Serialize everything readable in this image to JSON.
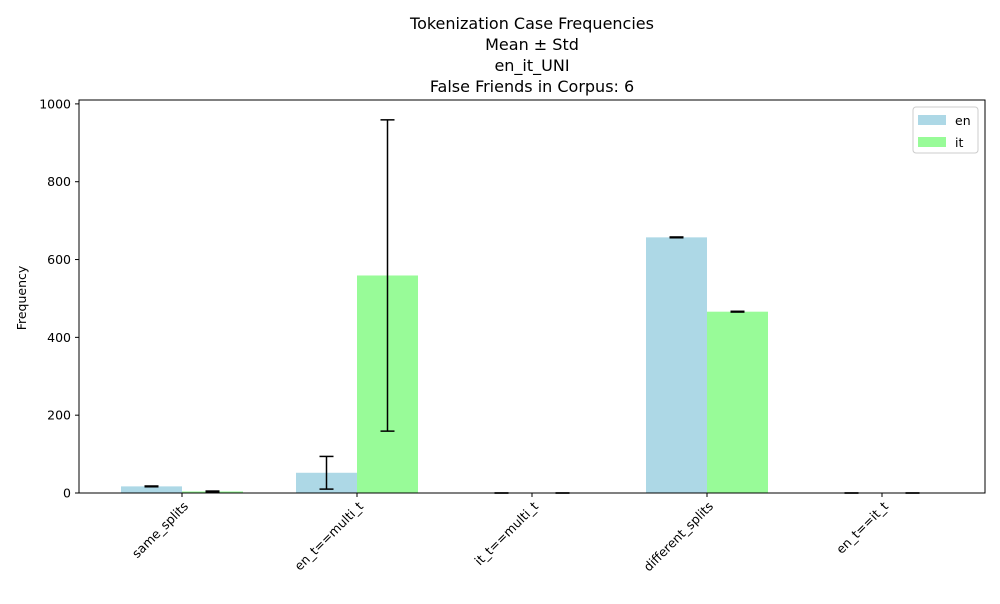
{
  "chart_data": {
    "type": "bar",
    "title_lines": [
      "Tokenization Case Frequencies",
      "Mean ± Std",
      "en_it_UNI",
      "False Friends in Corpus: 6"
    ],
    "xlabel": "",
    "ylabel": "Frequency",
    "categories": [
      "same_splits",
      "en_t==multi_t",
      "it_t==multi_t",
      "different_splits",
      "en_t==it_t"
    ],
    "series": [
      {
        "name": "en",
        "color": "#add8e6",
        "values": [
          17,
          52,
          0,
          657,
          0
        ],
        "errors": [
          1,
          42,
          0,
          1,
          0
        ]
      },
      {
        "name": "it",
        "color": "#98fb98",
        "values": [
          4,
          559,
          0,
          466,
          0
        ],
        "errors": [
          1,
          400,
          0,
          1,
          0
        ]
      }
    ],
    "ylim": [
      0,
      1010
    ],
    "yticks": [
      0,
      200,
      400,
      600,
      800,
      1000
    ],
    "legend_position": "top-right",
    "grid": false
  }
}
